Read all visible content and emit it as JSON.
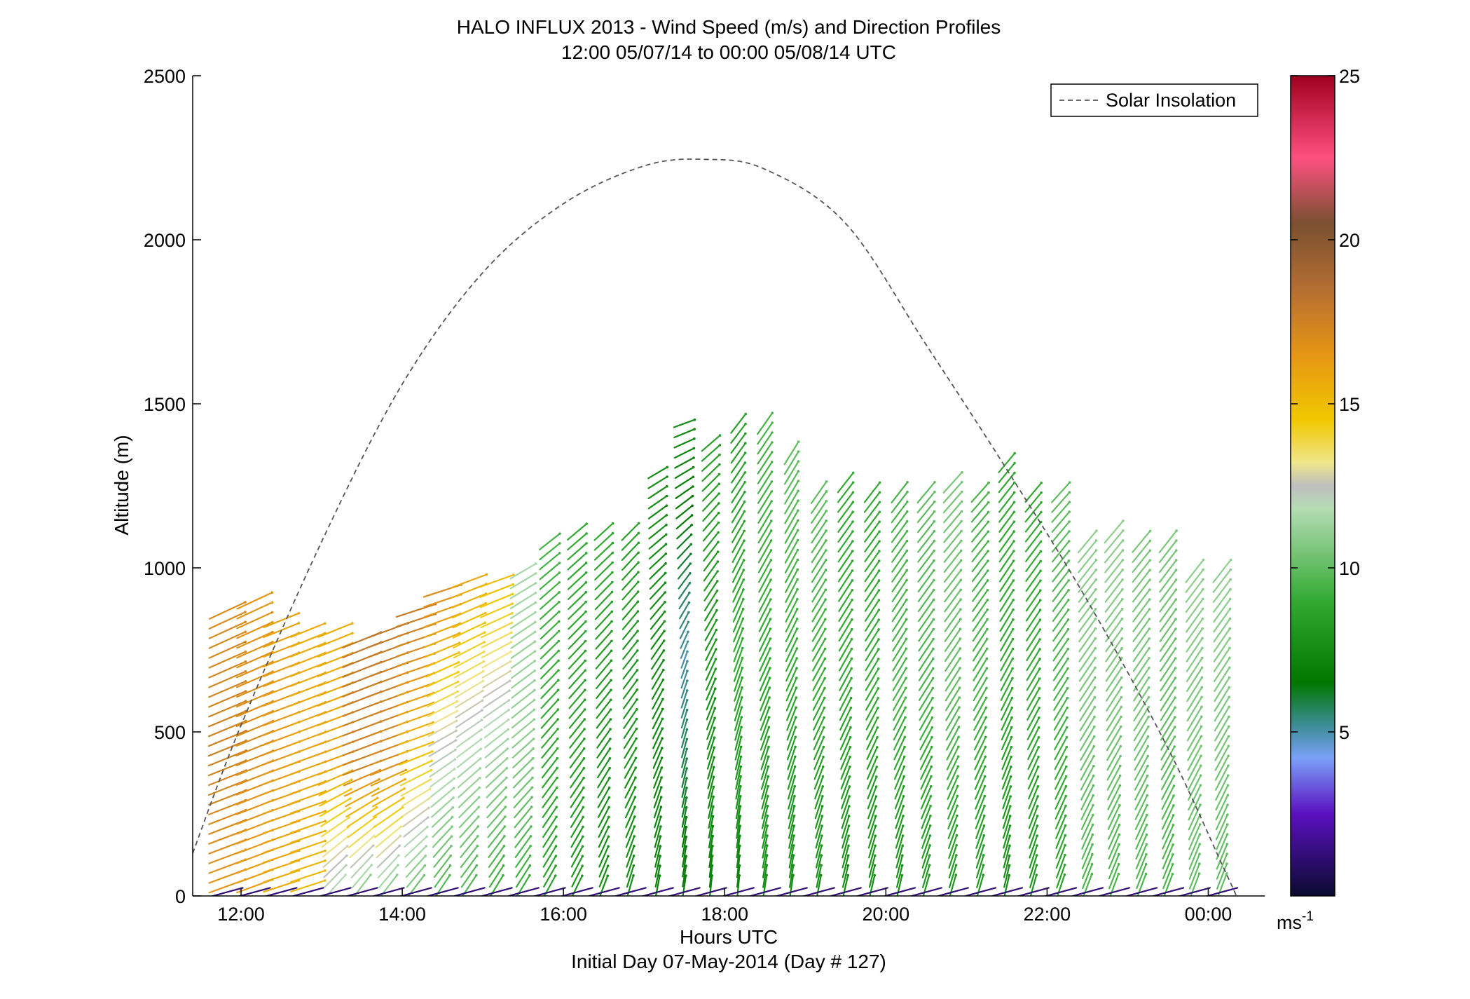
{
  "chart_data": {
    "type": "quiver",
    "title": "HALO INFLUX 2013 - Wind Speed (m/s) and Direction Profiles",
    "subtitle": "12:00 05/07/14 to 00:00 05/08/14  UTC",
    "xlabel": "Hours UTC",
    "xlabel2": "Initial Day 07-May-2014 (Day # 127)",
    "ylabel": "Altitude (m)",
    "xlim_hours": [
      11.4,
      24.7
    ],
    "ylim": [
      0,
      2500
    ],
    "xticks": [
      {
        "hour": 12,
        "label": "12:00"
      },
      {
        "hour": 14,
        "label": "14:00"
      },
      {
        "hour": 16,
        "label": "16:00"
      },
      {
        "hour": 18,
        "label": "18:00"
      },
      {
        "hour": 20,
        "label": "20:00"
      },
      {
        "hour": 22,
        "label": "22:00"
      },
      {
        "hour": 24,
        "label": "00:00"
      }
    ],
    "yticks": [
      0,
      500,
      1000,
      1500,
      2000,
      2500
    ],
    "grid": false,
    "legend": {
      "position": "top-right",
      "entries": [
        "Solar Insolation"
      ]
    },
    "colorbar": {
      "range": [
        0,
        25
      ],
      "ticks": [
        5,
        10,
        15,
        20,
        25
      ],
      "unit_base": "ms",
      "unit_exp": "-1",
      "stops": [
        {
          "v": 0,
          "c": "#0a0a30"
        },
        {
          "v": 2.5,
          "c": "#5a10c0"
        },
        {
          "v": 4.2,
          "c": "#7aa0f8"
        },
        {
          "v": 5.2,
          "c": "#3c8c96"
        },
        {
          "v": 6.5,
          "c": "#007800"
        },
        {
          "v": 9,
          "c": "#32aa32"
        },
        {
          "v": 11.8,
          "c": "#b4dcb4"
        },
        {
          "v": 12.5,
          "c": "#bebebe"
        },
        {
          "v": 13.2,
          "c": "#f0e68c"
        },
        {
          "v": 14.5,
          "c": "#f0c800"
        },
        {
          "v": 16.5,
          "c": "#e69614"
        },
        {
          "v": 18.5,
          "c": "#b46e32"
        },
        {
          "v": 20.5,
          "c": "#7a5030"
        },
        {
          "v": 22.5,
          "c": "#ff5080"
        },
        {
          "v": 25,
          "c": "#a00020"
        }
      ]
    },
    "solar_insolation": {
      "style": "dashed",
      "color": "#555555",
      "points": [
        {
          "hour": 11.4,
          "alt": 130
        },
        {
          "hour": 12.0,
          "alt": 520
        },
        {
          "hour": 13.0,
          "alt": 1080
        },
        {
          "hour": 14.0,
          "alt": 1560
        },
        {
          "hour": 15.0,
          "alt": 1900
        },
        {
          "hour": 16.0,
          "alt": 2110
        },
        {
          "hour": 17.0,
          "alt": 2225
        },
        {
          "hour": 17.75,
          "alt": 2245
        },
        {
          "hour": 18.5,
          "alt": 2215
        },
        {
          "hour": 19.5,
          "alt": 2050
        },
        {
          "hour": 20.5,
          "alt": 1680
        },
        {
          "hour": 21.5,
          "alt": 1300
        },
        {
          "hour": 22.5,
          "alt": 900
        },
        {
          "hour": 23.5,
          "alt": 450
        },
        {
          "hour": 24.2,
          "alt": 80
        },
        {
          "hour": 24.35,
          "alt": 0
        }
      ]
    },
    "profiles": [
      {
        "hour": 11.83,
        "top": 880,
        "low": {
          "ws": 16.5,
          "dir": 250
        },
        "mid": {
          "ws": 17.5,
          "dir": 248
        },
        "high": {
          "ws": 17,
          "dir": 245
        }
      },
      {
        "hour": 12.17,
        "top": 900,
        "low": {
          "ws": 16,
          "dir": 250
        },
        "mid": {
          "ws": 17,
          "dir": 248
        },
        "high": {
          "ws": 16.5,
          "dir": 245
        }
      },
      {
        "hour": 12.5,
        "top": 840,
        "low": {
          "ws": 15.5,
          "dir": 252
        },
        "mid": {
          "ws": 16.5,
          "dir": 250
        },
        "high": {
          "ws": 16,
          "dir": 248
        }
      },
      {
        "hour": 12.83,
        "top": 830,
        "low": {
          "ws": 15,
          "dir": 252
        },
        "mid": {
          "ws": 16,
          "dir": 250
        },
        "high": {
          "ws": 15.5,
          "dir": 248
        }
      },
      {
        "hour": 13.17,
        "top": 820,
        "low": {
          "ws": 11.5,
          "dir": 220
        },
        "mid": {
          "ws": 16,
          "dir": 250
        },
        "high": {
          "ws": 15.5,
          "dir": 248
        }
      },
      {
        "hour": 13.5,
        "top": 790,
        "low": {
          "ws": 10.5,
          "dir": 215
        },
        "mid": {
          "ws": 17.5,
          "dir": 250
        },
        "high": {
          "ws": 18,
          "dir": 248
        }
      },
      {
        "hour": 13.83,
        "top": 820,
        "low": {
          "ws": 10.5,
          "dir": 215
        },
        "mid": {
          "ws": 17,
          "dir": 250
        },
        "high": {
          "ws": 18,
          "dir": 250
        }
      },
      {
        "hour": 14.17,
        "top": 890,
        "low": {
          "ws": 10,
          "dir": 215
        },
        "mid": {
          "ws": 15,
          "dir": 250
        },
        "high": {
          "ws": 18,
          "dir": 252
        }
      },
      {
        "hour": 14.5,
        "top": 930,
        "low": {
          "ws": 9.5,
          "dir": 212
        },
        "mid": {
          "ws": 12.5,
          "dir": 240
        },
        "high": {
          "ws": 17,
          "dir": 252
        }
      },
      {
        "hour": 14.83,
        "top": 980,
        "low": {
          "ws": 9.5,
          "dir": 212
        },
        "mid": {
          "ws": 12,
          "dir": 235
        },
        "high": {
          "ws": 16,
          "dir": 250
        }
      },
      {
        "hour": 15.17,
        "top": 960,
        "low": {
          "ws": 9,
          "dir": 210
        },
        "mid": {
          "ws": 11.5,
          "dir": 232
        },
        "high": {
          "ws": 15,
          "dir": 250
        }
      },
      {
        "hour": 15.5,
        "top": 1000,
        "low": {
          "ws": 9,
          "dir": 210
        },
        "mid": {
          "ws": 11,
          "dir": 230
        },
        "high": {
          "ws": 11.5,
          "dir": 240
        }
      },
      {
        "hour": 15.83,
        "top": 1100,
        "low": {
          "ws": 8.5,
          "dir": 208
        },
        "mid": {
          "ws": 9,
          "dir": 222
        },
        "high": {
          "ws": 9.5,
          "dir": 232
        }
      },
      {
        "hour": 16.17,
        "top": 1120,
        "low": {
          "ws": 8,
          "dir": 205
        },
        "mid": {
          "ws": 8.5,
          "dir": 220
        },
        "high": {
          "ws": 9,
          "dir": 230
        }
      },
      {
        "hour": 16.5,
        "top": 1130,
        "low": {
          "ws": 7.5,
          "dir": 200
        },
        "mid": {
          "ws": 8,
          "dir": 218
        },
        "high": {
          "ws": 9,
          "dir": 228
        }
      },
      {
        "hour": 16.83,
        "top": 1120,
        "low": {
          "ws": 7.5,
          "dir": 195
        },
        "mid": {
          "ws": 8,
          "dir": 215
        },
        "high": {
          "ws": 8.5,
          "dir": 225
        }
      },
      {
        "hour": 17.17,
        "top": 1300,
        "low": {
          "ws": 7,
          "dir": 190
        },
        "mid": {
          "ws": 7.5,
          "dir": 210
        },
        "high": {
          "ws": 7.5,
          "dir": 240
        }
      },
      {
        "hour": 17.5,
        "top": 1440,
        "low": {
          "ws": 7,
          "dir": 188
        },
        "mid": {
          "ws": 5,
          "dir": 200
        },
        "high": {
          "ws": 7.5,
          "dir": 250
        }
      },
      {
        "hour": 17.83,
        "top": 1400,
        "low": {
          "ws": 7,
          "dir": 185
        },
        "mid": {
          "ws": 8,
          "dir": 205
        },
        "high": {
          "ws": 8.5,
          "dir": 230
        }
      },
      {
        "hour": 18.17,
        "top": 1450,
        "low": {
          "ws": 7,
          "dir": 185
        },
        "mid": {
          "ws": 9,
          "dir": 200
        },
        "high": {
          "ws": 8.5,
          "dir": 218
        }
      },
      {
        "hour": 18.5,
        "top": 1440,
        "low": {
          "ws": 7.5,
          "dir": 188
        },
        "mid": {
          "ws": 9,
          "dir": 205
        },
        "high": {
          "ws": 9.5,
          "dir": 215
        }
      },
      {
        "hour": 18.83,
        "top": 1370,
        "low": {
          "ws": 7.5,
          "dir": 188
        },
        "mid": {
          "ws": 9,
          "dir": 205
        },
        "high": {
          "ws": 10,
          "dir": 212
        }
      },
      {
        "hour": 19.17,
        "top": 1240,
        "low": {
          "ws": 7.5,
          "dir": 190
        },
        "mid": {
          "ws": 9,
          "dir": 208
        },
        "high": {
          "ws": 10,
          "dir": 215
        }
      },
      {
        "hour": 19.5,
        "top": 1260,
        "low": {
          "ws": 7.5,
          "dir": 192
        },
        "mid": {
          "ws": 9,
          "dir": 208
        },
        "high": {
          "ws": 9,
          "dir": 218
        }
      },
      {
        "hour": 19.83,
        "top": 1250,
        "low": {
          "ws": 7.5,
          "dir": 192
        },
        "mid": {
          "ws": 9,
          "dir": 210
        },
        "high": {
          "ws": 9,
          "dir": 218
        }
      },
      {
        "hour": 20.17,
        "top": 1250,
        "low": {
          "ws": 7.5,
          "dir": 192
        },
        "mid": {
          "ws": 9.5,
          "dir": 210
        },
        "high": {
          "ws": 9.5,
          "dir": 218
        }
      },
      {
        "hour": 20.5,
        "top": 1250,
        "low": {
          "ws": 8,
          "dir": 195
        },
        "mid": {
          "ws": 9.5,
          "dir": 212
        },
        "high": {
          "ws": 10,
          "dir": 220
        }
      },
      {
        "hour": 20.83,
        "top": 1260,
        "low": {
          "ws": 8,
          "dir": 195
        },
        "mid": {
          "ws": 10,
          "dir": 212
        },
        "high": {
          "ws": 10.5,
          "dir": 222
        }
      },
      {
        "hour": 21.17,
        "top": 1250,
        "low": {
          "ws": 8,
          "dir": 195
        },
        "mid": {
          "ws": 9.5,
          "dir": 210
        },
        "high": {
          "ws": 9.5,
          "dir": 222
        }
      },
      {
        "hour": 21.5,
        "top": 1330,
        "low": {
          "ws": 7.5,
          "dir": 192
        },
        "mid": {
          "ws": 9,
          "dir": 208
        },
        "high": {
          "ws": 9,
          "dir": 220
        }
      },
      {
        "hour": 21.83,
        "top": 1240,
        "low": {
          "ws": 8,
          "dir": 195
        },
        "mid": {
          "ws": 9,
          "dir": 210
        },
        "high": {
          "ws": 9,
          "dir": 220
        }
      },
      {
        "hour": 22.17,
        "top": 1230,
        "low": {
          "ws": 8.5,
          "dir": 198
        },
        "mid": {
          "ws": 9.5,
          "dir": 212
        },
        "high": {
          "ws": 10,
          "dir": 222
        }
      },
      {
        "hour": 22.5,
        "top": 1100,
        "low": {
          "ws": 9.5,
          "dir": 200
        },
        "mid": {
          "ws": 10.5,
          "dir": 212
        },
        "high": {
          "ws": 11,
          "dir": 220
        }
      },
      {
        "hour": 22.83,
        "top": 1110,
        "low": {
          "ws": 9.5,
          "dir": 200
        },
        "mid": {
          "ws": 10.5,
          "dir": 212
        },
        "high": {
          "ws": 11,
          "dir": 220
        }
      },
      {
        "hour": 23.17,
        "top": 1100,
        "low": {
          "ws": 9.5,
          "dir": 200
        },
        "mid": {
          "ws": 10.5,
          "dir": 212
        },
        "high": {
          "ws": 10.5,
          "dir": 220
        }
      },
      {
        "hour": 23.5,
        "top": 1080,
        "low": {
          "ws": 9.5,
          "dir": 200
        },
        "mid": {
          "ws": 10,
          "dir": 212
        },
        "high": {
          "ws": 10.5,
          "dir": 218
        }
      },
      {
        "hour": 23.83,
        "top": 1000,
        "low": {
          "ws": 10,
          "dir": 200
        },
        "mid": {
          "ws": 10.5,
          "dir": 210
        },
        "high": {
          "ws": 11,
          "dir": 218
        }
      },
      {
        "hour": 24.17,
        "top": 1000,
        "low": {
          "ws": 10,
          "dir": 200
        },
        "mid": {
          "ws": 10.5,
          "dir": 210
        },
        "high": {
          "ws": 11,
          "dir": 218
        }
      }
    ]
  }
}
